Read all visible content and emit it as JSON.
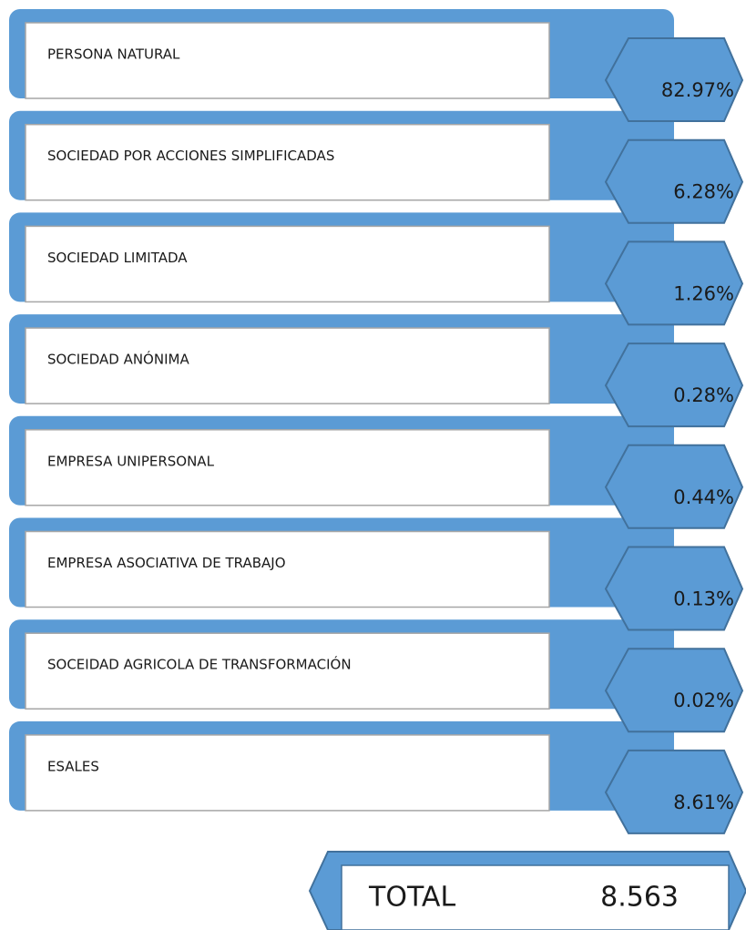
{
  "items": [
    {
      "label": "PERSONA NATURAL",
      "value": "82.97%"
    },
    {
      "label": "SOCIEDAD POR ACCIONES SIMPLIFICADAS",
      "value": "6.28%"
    },
    {
      "label": "SOCIEDAD LIMITADA",
      "value": "1.26%"
    },
    {
      "label": "SOCIEDAD ANÓNIMA",
      "value": "0.28%"
    },
    {
      "label": "EMPRESA UNIPERSONAL",
      "value": "0.44%"
    },
    {
      "label": "EMPRESA ASOCIATIVA DE TRABAJO",
      "value": "0.13%"
    },
    {
      "label": "SOCEIDAD AGRICOLA DE TRANSFORMACIÓN",
      "value": "0.02%"
    },
    {
      "label": "ESALES",
      "value": "8.61%"
    }
  ],
  "total": {
    "label": "TOTAL",
    "value": "8.563"
  }
}
